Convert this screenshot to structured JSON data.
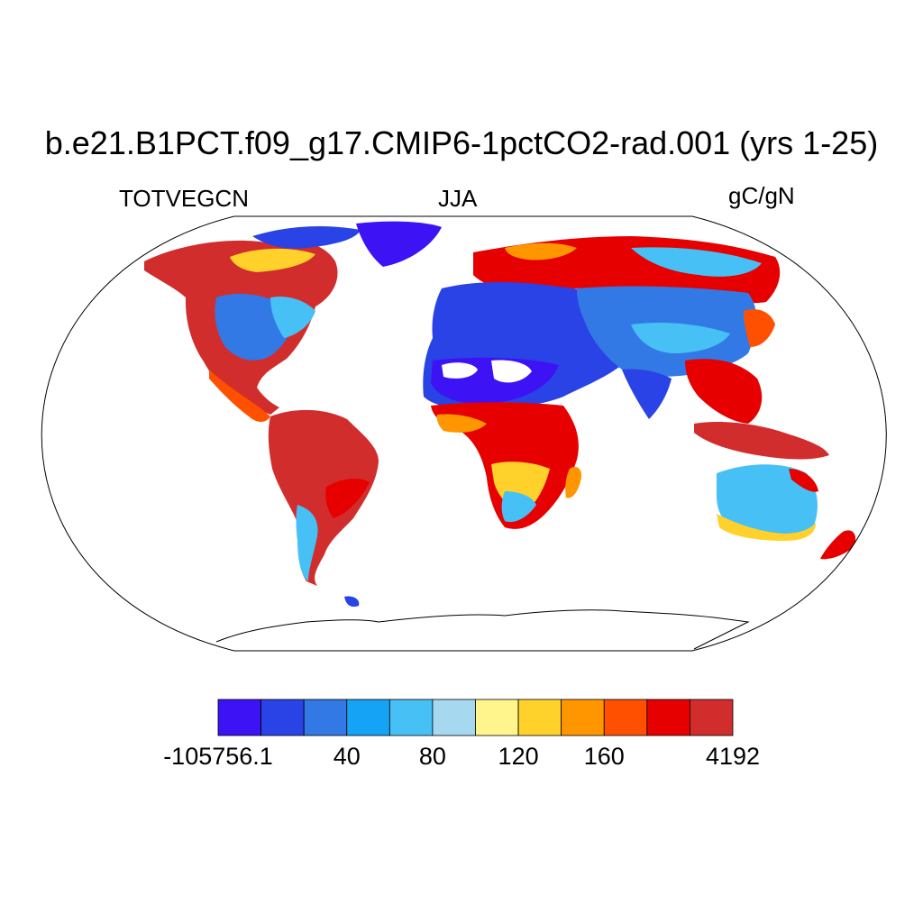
{
  "title": "b.e21.B1PCT.f09_g17.CMIP6-1pctCO2-rad.001 (yrs 1-25)",
  "subtitle_left": "TOTVEGCN",
  "subtitle_center": "JJA",
  "subtitle_right": "gC/gN",
  "colorbar": {
    "colors": [
      "#3d12f5",
      "#2943e6",
      "#3279e6",
      "#14a3f5",
      "#46c0f5",
      "#a6d8f0",
      "#fff58c",
      "#ffd12a",
      "#ff9600",
      "#ff5000",
      "#e60000",
      "#d22d2d"
    ],
    "labels": [
      {
        "text": "-105756.1",
        "boundary": 0
      },
      {
        "text": "40",
        "boundary": 3
      },
      {
        "text": "80",
        "boundary": 5
      },
      {
        "text": "120",
        "boundary": 7
      },
      {
        "text": "160",
        "boundary": 9
      },
      {
        "text": "4192",
        "boundary": 12
      }
    ]
  }
}
